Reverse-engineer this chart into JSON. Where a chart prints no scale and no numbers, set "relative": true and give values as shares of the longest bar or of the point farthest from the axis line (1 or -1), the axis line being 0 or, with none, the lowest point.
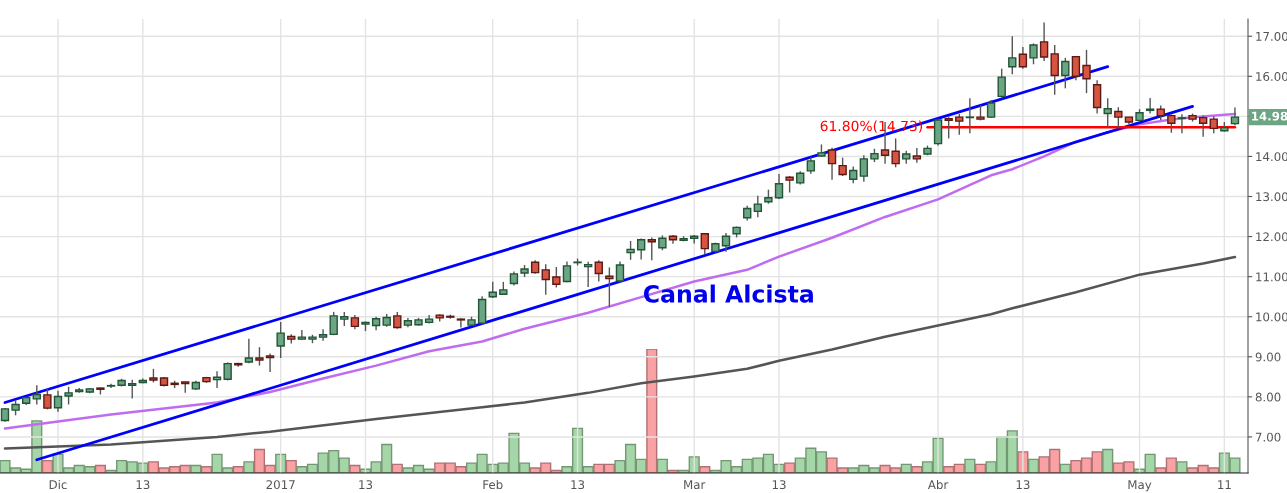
{
  "chart_data": [
    {
      "type": "candlestick",
      "categories": [
        null,
        null,
        null,
        null,
        null,
        "Dic",
        null,
        null,
        null,
        null,
        null,
        null,
        null,
        "13",
        null,
        null,
        null,
        null,
        null,
        null,
        null,
        null,
        null,
        null,
        null,
        null,
        "2017",
        null,
        null,
        null,
        null,
        null,
        null,
        null,
        "13",
        null,
        null,
        null,
        null,
        null,
        null,
        null,
        null,
        null,
        null,
        null,
        "Feb",
        null,
        null,
        null,
        null,
        null,
        null,
        null,
        "13",
        null,
        null,
        null,
        null,
        null,
        null,
        null,
        null,
        null,
        null,
        "Mar",
        null,
        null,
        null,
        null,
        null,
        null,
        null,
        "13",
        null,
        null,
        null,
        null,
        null,
        null,
        null,
        null,
        null,
        null,
        null,
        null,
        null,
        null,
        "Abr",
        null,
        null,
        null,
        null,
        null,
        null,
        null,
        "13",
        null,
        null,
        null,
        null,
        null,
        null,
        null,
        null,
        null,
        null,
        "May",
        null,
        null,
        null,
        null,
        null,
        null,
        null,
        "11",
        null
      ],
      "ohlc": [
        [
          7.41,
          7.72,
          7.38,
          7.7
        ],
        [
          7.67,
          7.91,
          7.54,
          7.81
        ],
        [
          7.84,
          8.0,
          7.8,
          7.98
        ],
        [
          7.95,
          8.29,
          7.81,
          8.06
        ],
        [
          8.05,
          8.21,
          7.69,
          7.72
        ],
        [
          7.73,
          8.15,
          7.63,
          8.01
        ],
        [
          8.02,
          8.25,
          7.81,
          8.1
        ],
        [
          8.13,
          8.22,
          8.1,
          8.17
        ],
        [
          8.12,
          8.22,
          8.09,
          8.2
        ],
        [
          8.22,
          8.23,
          8.06,
          8.19
        ],
        [
          8.27,
          8.33,
          8.22,
          8.27
        ],
        [
          8.29,
          8.45,
          8.26,
          8.41
        ],
        [
          8.29,
          8.43,
          7.96,
          8.33
        ],
        [
          8.36,
          8.46,
          8.34,
          8.41
        ],
        [
          8.47,
          8.7,
          8.36,
          8.42
        ],
        [
          8.47,
          8.49,
          8.26,
          8.29
        ],
        [
          8.34,
          8.4,
          8.22,
          8.31
        ],
        [
          8.37,
          8.38,
          8.1,
          8.33
        ],
        [
          8.2,
          8.4,
          8.17,
          8.36
        ],
        [
          8.48,
          8.5,
          8.35,
          8.38
        ],
        [
          8.43,
          8.64,
          8.22,
          8.49
        ],
        [
          8.44,
          8.86,
          8.41,
          8.83
        ],
        [
          8.83,
          8.85,
          8.75,
          8.8
        ],
        [
          8.87,
          9.45,
          8.84,
          8.97
        ],
        [
          8.97,
          9.24,
          8.78,
          8.92
        ],
        [
          9.02,
          9.08,
          8.62,
          8.98
        ],
        [
          9.27,
          9.87,
          8.97,
          9.59
        ],
        [
          9.51,
          9.56,
          9.33,
          9.44
        ],
        [
          9.44,
          9.67,
          9.42,
          9.49
        ],
        [
          9.44,
          9.55,
          9.34,
          9.49
        ],
        [
          9.49,
          9.69,
          9.4,
          9.55
        ],
        [
          9.56,
          10.12,
          9.54,
          10.02
        ],
        [
          9.94,
          10.12,
          9.77,
          10.0
        ],
        [
          9.97,
          10.04,
          9.69,
          9.76
        ],
        [
          9.82,
          9.88,
          9.64,
          9.86
        ],
        [
          9.78,
          10.0,
          9.66,
          9.95
        ],
        [
          9.79,
          10.07,
          9.75,
          9.98
        ],
        [
          10.02,
          10.12,
          9.7,
          9.73
        ],
        [
          9.79,
          9.97,
          9.74,
          9.9
        ],
        [
          9.8,
          9.97,
          9.78,
          9.92
        ],
        [
          9.86,
          10.04,
          9.83,
          9.94
        ],
        [
          10.04,
          10.06,
          9.88,
          9.97
        ],
        [
          10.01,
          10.05,
          9.95,
          9.99
        ],
        [
          9.94,
          9.96,
          9.73,
          9.92
        ],
        [
          9.79,
          10.0,
          9.77,
          9.92
        ],
        [
          9.84,
          10.51,
          9.81,
          10.43
        ],
        [
          10.5,
          10.87,
          10.47,
          10.61
        ],
        [
          10.56,
          10.87,
          10.55,
          10.67
        ],
        [
          10.83,
          11.13,
          10.78,
          11.07
        ],
        [
          11.09,
          11.29,
          10.99,
          11.19
        ],
        [
          11.36,
          11.41,
          11.07,
          11.1
        ],
        [
          11.17,
          11.31,
          10.55,
          10.93
        ],
        [
          10.99,
          11.24,
          10.73,
          10.81
        ],
        [
          10.88,
          11.38,
          10.86,
          11.27
        ],
        [
          11.35,
          11.45,
          11.28,
          11.36
        ],
        [
          11.25,
          11.37,
          10.74,
          11.3
        ],
        [
          11.36,
          11.41,
          10.88,
          11.08
        ],
        [
          11.01,
          11.23,
          10.25,
          10.95
        ],
        [
          10.89,
          11.38,
          10.86,
          11.29
        ],
        [
          11.6,
          11.89,
          11.42,
          11.68
        ],
        [
          11.67,
          11.95,
          11.43,
          11.92
        ],
        [
          11.92,
          11.98,
          11.41,
          11.87
        ],
        [
          11.72,
          12.03,
          11.66,
          11.96
        ],
        [
          12.01,
          12.04,
          11.82,
          11.92
        ],
        [
          11.91,
          12.01,
          11.88,
          11.95
        ],
        [
          11.96,
          12.04,
          11.83,
          12.01
        ],
        [
          12.07,
          12.08,
          11.55,
          11.7
        ],
        [
          11.63,
          11.85,
          11.6,
          11.82
        ],
        [
          11.77,
          12.09,
          11.62,
          12.01
        ],
        [
          12.07,
          12.25,
          11.98,
          12.23
        ],
        [
          12.47,
          12.77,
          12.4,
          12.7
        ],
        [
          12.63,
          13.02,
          12.48,
          12.81
        ],
        [
          12.87,
          13.17,
          12.82,
          12.97
        ],
        [
          12.97,
          13.56,
          12.94,
          13.32
        ],
        [
          13.48,
          13.51,
          13.1,
          13.41
        ],
        [
          13.34,
          13.63,
          13.3,
          13.58
        ],
        [
          13.64,
          13.98,
          13.57,
          13.89
        ],
        [
          14.01,
          14.3,
          13.99,
          14.09
        ],
        [
          14.16,
          14.22,
          13.42,
          13.82
        ],
        [
          13.77,
          13.97,
          13.51,
          13.55
        ],
        [
          13.43,
          13.75,
          13.33,
          13.65
        ],
        [
          13.51,
          14.03,
          13.37,
          13.94
        ],
        [
          13.94,
          14.19,
          13.86,
          14.07
        ],
        [
          14.16,
          14.86,
          13.82,
          14.03
        ],
        [
          14.13,
          14.45,
          13.73,
          13.82
        ],
        [
          13.94,
          14.14,
          13.82,
          14.06
        ],
        [
          14.01,
          14.21,
          13.84,
          13.94
        ],
        [
          14.06,
          14.27,
          14.03,
          14.2
        ],
        [
          14.32,
          14.94,
          14.27,
          14.91
        ],
        [
          14.94,
          14.98,
          14.45,
          14.9
        ],
        [
          14.98,
          15.06,
          14.54,
          14.88
        ],
        [
          14.97,
          15.45,
          14.58,
          14.98
        ],
        [
          14.98,
          15.28,
          14.9,
          14.93
        ],
        [
          14.98,
          15.41,
          14.96,
          15.33
        ],
        [
          15.5,
          16.19,
          15.45,
          15.98
        ],
        [
          16.24,
          17.0,
          16.05,
          16.46
        ],
        [
          16.55,
          16.73,
          16.19,
          16.24
        ],
        [
          16.46,
          16.82,
          16.3,
          16.78
        ],
        [
          16.86,
          17.34,
          16.38,
          16.48
        ],
        [
          16.56,
          16.78,
          15.54,
          16.02
        ],
        [
          16.02,
          16.46,
          15.7,
          16.37
        ],
        [
          16.49,
          16.49,
          15.9,
          16.0
        ],
        [
          16.27,
          16.66,
          15.58,
          15.94
        ],
        [
          15.79,
          15.9,
          15.07,
          15.22
        ],
        [
          15.07,
          15.45,
          14.72,
          15.19
        ],
        [
          15.12,
          15.23,
          14.74,
          14.98
        ],
        [
          14.98,
          14.98,
          14.81,
          14.86
        ],
        [
          14.9,
          15.18,
          14.86,
          15.09
        ],
        [
          15.15,
          15.46,
          15.07,
          15.18
        ],
        [
          15.18,
          15.27,
          14.91,
          15.02
        ],
        [
          15.02,
          15.05,
          14.59,
          14.83
        ],
        [
          14.95,
          15.05,
          14.58,
          14.96
        ],
        [
          15.02,
          15.07,
          14.87,
          14.93
        ],
        [
          14.97,
          15.02,
          14.49,
          14.83
        ],
        [
          14.93,
          15.0,
          14.58,
          14.7
        ],
        [
          14.64,
          14.86,
          14.62,
          14.72
        ],
        [
          14.82,
          15.22,
          14.78,
          14.98
        ]
      ],
      "series": [
        {
          "type": "line",
          "color": "#c06cf0",
          "values": [
            7.21,
            null,
            null,
            null,
            null,
            null,
            null,
            null,
            null,
            null,
            7.56,
            null,
            null,
            null,
            null,
            null,
            null,
            null,
            null,
            null,
            7.86,
            null,
            null,
            null,
            null,
            8.12,
            null,
            null,
            null,
            null,
            8.46,
            null,
            null,
            null,
            null,
            8.78,
            null,
            null,
            null,
            null,
            9.14,
            null,
            null,
            null,
            null,
            9.38,
            null,
            null,
            null,
            9.7,
            null,
            null,
            null,
            null,
            null,
            10.1,
            null,
            null,
            null,
            null,
            10.49,
            null,
            null,
            null,
            null,
            10.88,
            null,
            null,
            null,
            null,
            11.17,
            null,
            null,
            11.5,
            null,
            null,
            null,
            null,
            11.97,
            null,
            null,
            null,
            null,
            12.49,
            null,
            null,
            null,
            null,
            12.93,
            null,
            null,
            null,
            null,
            13.53,
            null,
            13.68,
            null,
            null,
            14.0,
            null,
            null,
            14.37,
            null,
            null,
            14.6,
            null,
            null,
            14.8,
            null,
            null,
            14.92,
            null,
            null,
            15.0,
            null,
            null,
            15.06
          ]
        },
        {
          "type": "line",
          "color": "#555555",
          "values": [
            6.71,
            null,
            null,
            null,
            null,
            null,
            null,
            null,
            null,
            null,
            6.81,
            null,
            null,
            null,
            null,
            null,
            null,
            null,
            null,
            null,
            7.0,
            null,
            null,
            null,
            null,
            7.13,
            null,
            null,
            null,
            null,
            null,
            null,
            null,
            null,
            null,
            7.45,
            null,
            null,
            null,
            null,
            null,
            null,
            null,
            null,
            null,
            7.74,
            null,
            null,
            null,
            7.86,
            null,
            null,
            null,
            null,
            null,
            8.1,
            null,
            null,
            null,
            null,
            8.34,
            null,
            null,
            null,
            null,
            8.51,
            null,
            null,
            null,
            null,
            8.7,
            null,
            null,
            8.9,
            null,
            null,
            null,
            null,
            9.18,
            null,
            null,
            null,
            null,
            9.5,
            null,
            null,
            null,
            null,
            9.78,
            null,
            null,
            null,
            null,
            10.06,
            null,
            10.21,
            null,
            null,
            null,
            null,
            null,
            10.61,
            null,
            null,
            null,
            null,
            null,
            11.05,
            null,
            null,
            null,
            null,
            null,
            11.33,
            null,
            null,
            11.49
          ]
        },
        {
          "type": "line",
          "color": "#0000ff",
          "values": [
            7.86,
            null,
            null,
            null,
            null,
            null,
            null,
            null,
            null,
            null,
            null,
            null,
            null,
            null,
            null,
            null,
            null,
            null,
            null,
            null,
            null,
            null,
            null,
            null,
            null,
            null,
            null,
            null,
            null,
            null,
            null,
            null,
            null,
            null,
            null,
            null,
            null,
            null,
            null,
            null,
            null,
            null,
            null,
            null,
            null,
            null,
            null,
            null,
            null,
            null,
            null,
            null,
            null,
            null,
            null,
            null,
            null,
            null,
            null,
            null,
            null,
            null,
            null,
            null,
            null,
            null,
            null,
            null,
            null,
            null,
            null,
            null,
            null,
            null,
            null,
            null,
            null,
            null,
            null,
            null,
            null,
            null,
            null,
            null,
            null,
            null,
            null,
            null,
            null,
            null,
            null,
            null,
            null,
            null,
            null,
            null,
            null,
            null,
            null,
            null,
            null,
            null,
            null,
            null,
            16.24,
            null,
            null,
            null,
            null,
            null,
            null,
            null,
            null,
            null,
            null,
            null,
            null
          ]
        },
        {
          "type": "line",
          "color": "#0000ff",
          "values": [
            null,
            null,
            null,
            6.43,
            null,
            null,
            null,
            null,
            null,
            null,
            null,
            null,
            null,
            null,
            null,
            null,
            null,
            null,
            null,
            null,
            null,
            null,
            null,
            null,
            null,
            null,
            null,
            null,
            null,
            null,
            null,
            null,
            null,
            null,
            null,
            null,
            null,
            null,
            null,
            null,
            null,
            null,
            null,
            null,
            null,
            null,
            null,
            null,
            null,
            null,
            null,
            null,
            null,
            null,
            null,
            null,
            null,
            null,
            null,
            null,
            null,
            null,
            null,
            null,
            null,
            null,
            null,
            null,
            null,
            null,
            null,
            null,
            null,
            null,
            null,
            null,
            null,
            null,
            null,
            null,
            null,
            null,
            null,
            null,
            null,
            null,
            null,
            null,
            null,
            null,
            null,
            null,
            null,
            null,
            null,
            null,
            null,
            null,
            null,
            null,
            null,
            null,
            null,
            null,
            null,
            null,
            null,
            null,
            null,
            null,
            null,
            null,
            15.25,
            null,
            null,
            null,
            null
          ]
        },
        {
          "type": "line",
          "name": "61.80%(14.73)",
          "color": "#ff0000",
          "values": [
            null,
            null,
            null,
            null,
            null,
            null,
            null,
            null,
            null,
            null,
            null,
            null,
            null,
            null,
            null,
            null,
            null,
            null,
            null,
            null,
            null,
            null,
            null,
            null,
            null,
            null,
            null,
            null,
            null,
            null,
            null,
            null,
            null,
            null,
            null,
            null,
            null,
            null,
            null,
            null,
            null,
            null,
            null,
            null,
            null,
            null,
            null,
            null,
            null,
            null,
            null,
            null,
            null,
            null,
            null,
            null,
            null,
            null,
            null,
            null,
            null,
            null,
            null,
            null,
            null,
            null,
            null,
            null,
            null,
            null,
            null,
            null,
            null,
            null,
            null,
            null,
            null,
            null,
            null,
            null,
            null,
            null,
            null,
            null,
            null,
            null,
            null,
            14.73,
            null,
            null,
            null,
            null,
            null,
            null,
            null,
            null,
            null,
            null,
            null,
            null,
            null,
            null,
            null,
            null,
            null,
            null,
            null,
            null,
            null,
            null,
            null,
            null,
            null,
            null,
            null,
            null,
            14.73
          ]
        }
      ],
      "ylim": [
        6.1,
        17.43
      ],
      "yticks": [
        {
          "value": 7,
          "label": "7.00"
        },
        {
          "value": 8,
          "label": "8.00"
        },
        {
          "value": 9,
          "label": "9.00"
        },
        {
          "value": 10,
          "label": "10.00"
        },
        {
          "value": 11,
          "label": "11.00"
        },
        {
          "value": 12,
          "label": "12.00"
        },
        {
          "value": 13,
          "label": "13.00"
        },
        {
          "value": 14,
          "label": "14.00"
        },
        {
          "value": 15,
          "label": null
        },
        {
          "value": 16,
          "label": "16.00"
        },
        {
          "value": 17,
          "label": "17.00"
        }
      ],
      "grid": true,
      "annotations": [
        "Canal Alcista",
        "14.98"
      ]
    },
    {
      "type": "bar",
      "relative": true,
      "values": [
        0.1,
        0.04,
        0.03,
        0.42,
        0.1,
        0.15,
        0.04,
        0.06,
        0.05,
        0.06,
        0.02,
        0.1,
        0.09,
        0.08,
        0.09,
        0.04,
        0.05,
        0.06,
        0.06,
        0.05,
        0.15,
        0.04,
        0.05,
        0.09,
        0.19,
        0.06,
        0.15,
        0.1,
        0.05,
        0.07,
        0.16,
        0.18,
        0.12,
        0.06,
        0.03,
        0.09,
        0.23,
        0.07,
        0.04,
        0.06,
        0.03,
        0.08,
        0.08,
        0.05,
        0.08,
        0.15,
        0.07,
        0.08,
        0.32,
        0.08,
        0.04,
        0.08,
        0.02,
        0.05,
        0.36,
        0.05,
        0.07,
        0.07,
        0.1,
        0.23,
        0.11,
        1,
        0.11,
        0.02,
        0.02,
        0.13,
        0.05,
        0.02,
        0.1,
        0.05,
        0.11,
        0.12,
        0.15,
        0.07,
        0.08,
        0.12,
        0.2,
        0.17,
        0.12,
        0.04,
        0.04,
        0.06,
        0.04,
        0.06,
        0.04,
        0.07,
        0.05,
        0.09,
        0.28,
        0.05,
        0.07,
        0.11,
        0.07,
        0.09,
        0.29,
        0.34,
        0.17,
        0.11,
        0.13,
        0.19,
        0.07,
        0.1,
        0.12,
        0.17,
        0.19,
        0.08,
        0.09,
        0.03,
        0.15,
        0.04,
        0.12,
        0.09,
        0.04,
        0.06,
        0.04,
        0.16,
        0.12
      ],
      "colors": [
        "#a5d6a7",
        "#a5d6a7",
        "#a5d6a7",
        "#a5d6a7",
        "#faa1a4",
        "#a5d6a7",
        "#a5d6a7",
        "#a5d6a7",
        "#a5d6a7",
        "#faa1a4",
        "#a5d6a7",
        "#a5d6a7",
        "#a5d6a7",
        "#a5d6a7",
        "#faa1a4",
        "#faa1a4",
        "#faa1a4",
        "#faa1a4",
        "#a5d6a7",
        "#faa1a4",
        "#a5d6a7",
        "#a5d6a7",
        "#faa1a4",
        "#a5d6a7",
        "#faa1a4",
        "#faa1a4",
        "#a5d6a7",
        "#faa1a4",
        "#a5d6a7",
        "#a5d6a7",
        "#a5d6a7",
        "#a5d6a7",
        "#a5d6a7",
        "#faa1a4",
        "#a5d6a7",
        "#a5d6a7",
        "#a5d6a7",
        "#faa1a4",
        "#a5d6a7",
        "#a5d6a7",
        "#a5d6a7",
        "#faa1a4",
        "#faa1a4",
        "#faa1a4",
        "#a5d6a7",
        "#a5d6a7",
        "#a5d6a7",
        "#a5d6a7",
        "#a5d6a7",
        "#a5d6a7",
        "#faa1a4",
        "#faa1a4",
        "#faa1a4",
        "#a5d6a7",
        "#a5d6a7",
        "#a5d6a7",
        "#faa1a4",
        "#faa1a4",
        "#a5d6a7",
        "#a5d6a7",
        "#a5d6a7",
        "#faa1a4",
        "#a5d6a7",
        "#faa1a4",
        "#a5d6a7",
        "#a5d6a7",
        "#faa1a4",
        "#a5d6a7",
        "#a5d6a7",
        "#a5d6a7",
        "#a5d6a7",
        "#a5d6a7",
        "#a5d6a7",
        "#a5d6a7",
        "#faa1a4",
        "#a5d6a7",
        "#a5d6a7",
        "#a5d6a7",
        "#faa1a4",
        "#faa1a4",
        "#a5d6a7",
        "#a5d6a7",
        "#a5d6a7",
        "#faa1a4",
        "#faa1a4",
        "#a5d6a7",
        "#faa1a4",
        "#a5d6a7",
        "#a5d6a7",
        "#faa1a4",
        "#faa1a4",
        "#a5d6a7",
        "#faa1a4",
        "#a5d6a7",
        "#a5d6a7",
        "#a5d6a7",
        "#faa1a4",
        "#a5d6a7",
        "#faa1a4",
        "#faa1a4",
        "#a5d6a7",
        "#faa1a4",
        "#faa1a4",
        "#faa1a4",
        "#a5d6a7",
        "#faa1a4",
        "#faa1a4",
        "#a5d6a7",
        "#a5d6a7",
        "#faa1a4",
        "#faa1a4",
        "#a5d6a7",
        "#faa1a4",
        "#faa1a4",
        "#faa1a4",
        "#a5d6a7",
        "#a5d6a7"
      ]
    }
  ]
}
